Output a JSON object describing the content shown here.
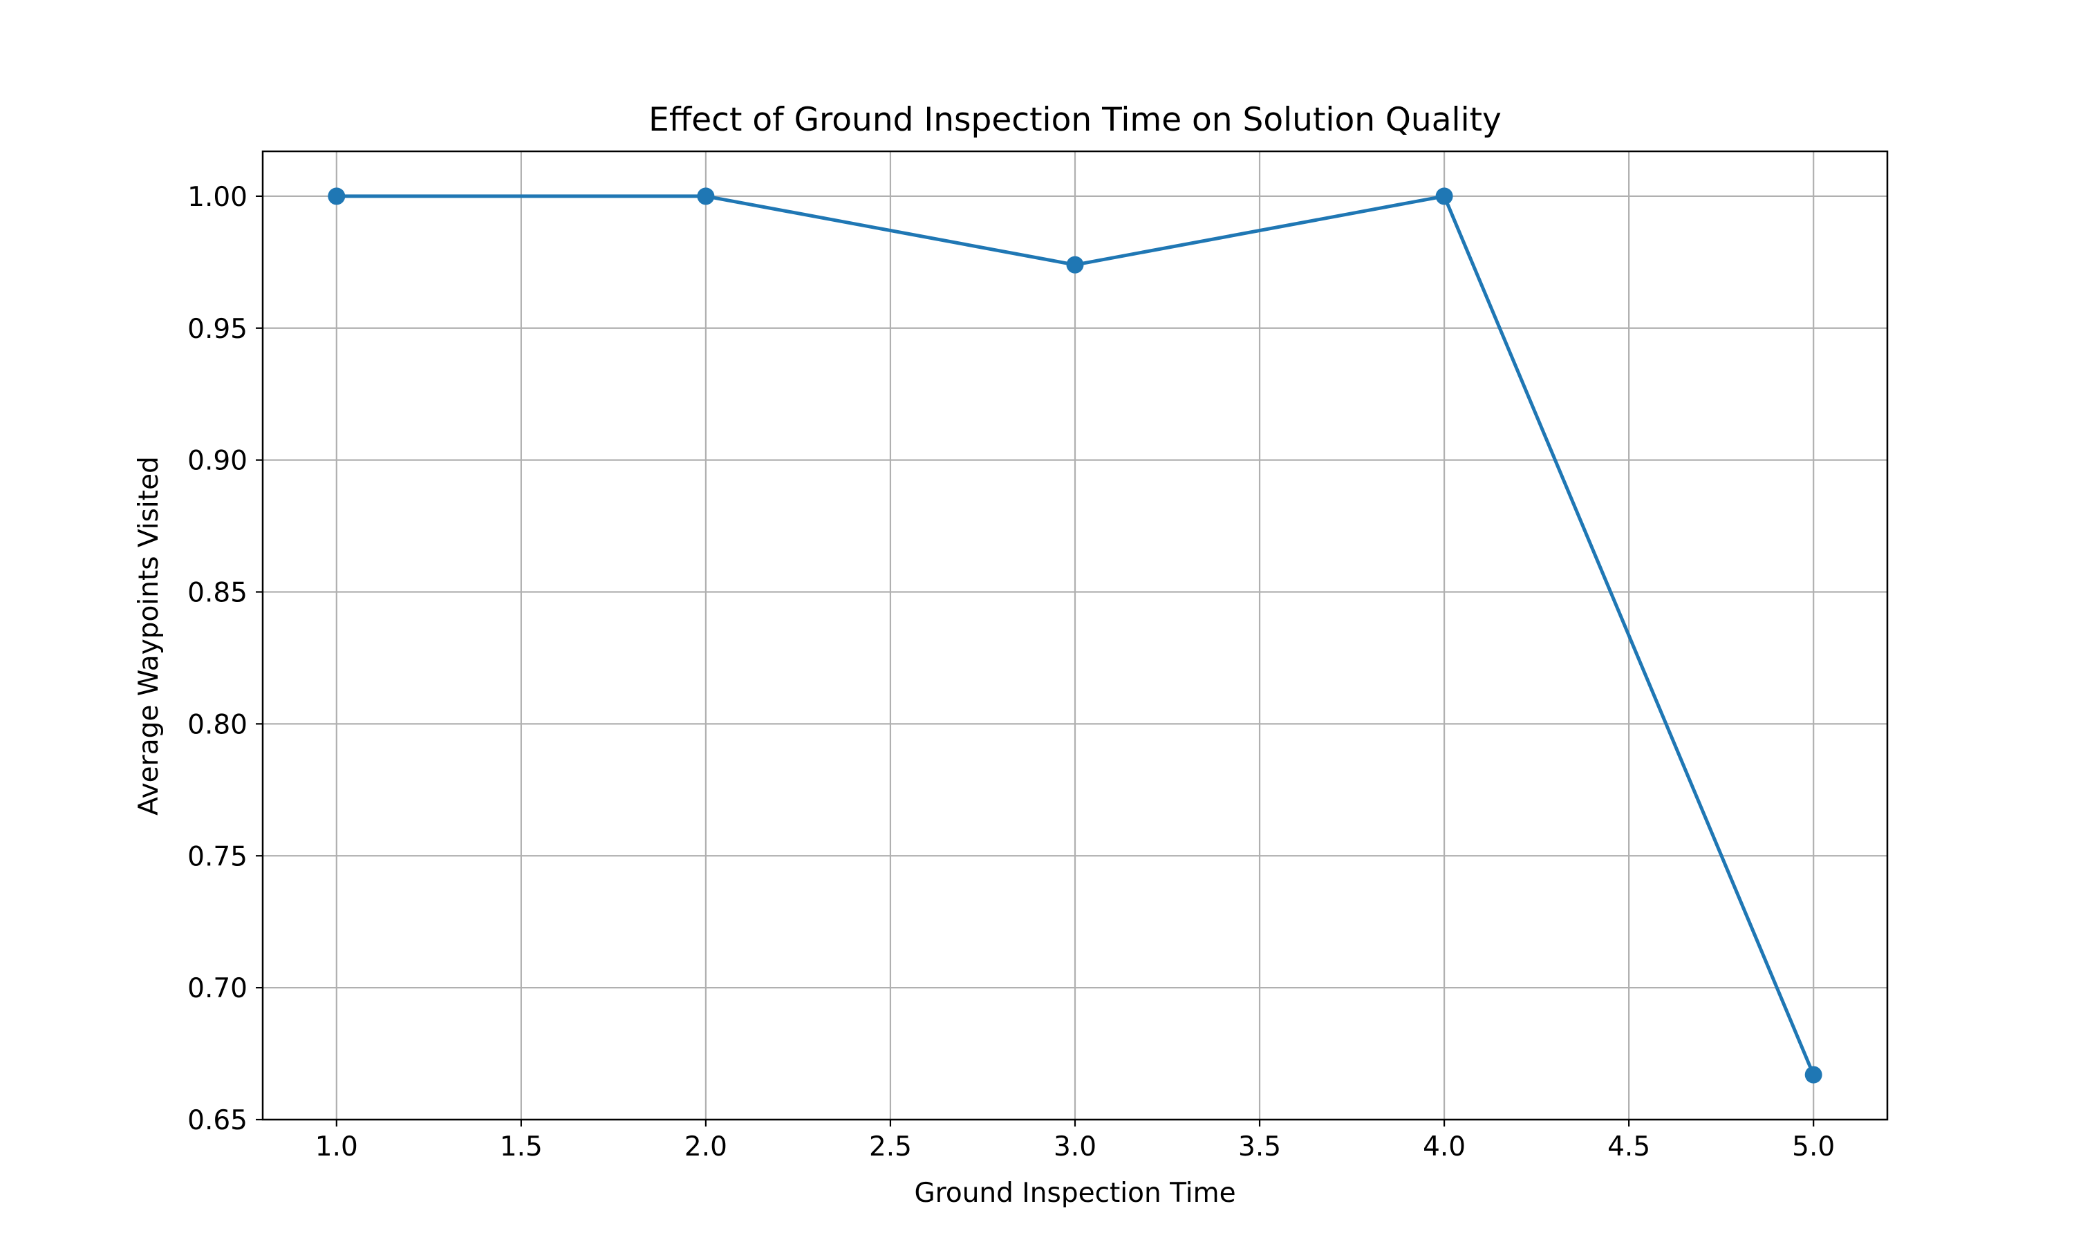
{
  "chart_data": {
    "type": "line",
    "title": "Effect of Ground Inspection Time on Solution Quality",
    "xlabel": "Ground Inspection Time",
    "ylabel": "Average Waypoints Visited",
    "xlim": [
      0.8,
      5.2
    ],
    "ylim": [
      0.65,
      1.017
    ],
    "x_ticks": [
      1.0,
      1.5,
      2.0,
      2.5,
      3.0,
      3.5,
      4.0,
      4.5,
      5.0
    ],
    "x_tick_labels": [
      "1.0",
      "1.5",
      "2.0",
      "2.5",
      "3.0",
      "3.5",
      "4.0",
      "4.5",
      "5.0"
    ],
    "y_ticks": [
      0.65,
      0.7,
      0.75,
      0.8,
      0.85,
      0.9,
      0.95,
      1.0
    ],
    "y_tick_labels": [
      "0.65",
      "0.70",
      "0.75",
      "0.80",
      "0.85",
      "0.90",
      "0.95",
      "1.00"
    ],
    "grid": true,
    "series": [
      {
        "x": [
          1.0,
          2.0,
          3.0,
          4.0,
          5.0
        ],
        "values": [
          1.0,
          1.0,
          0.974,
          1.0,
          0.667
        ],
        "color": "#1f77b4",
        "marker": "circle"
      }
    ]
  }
}
